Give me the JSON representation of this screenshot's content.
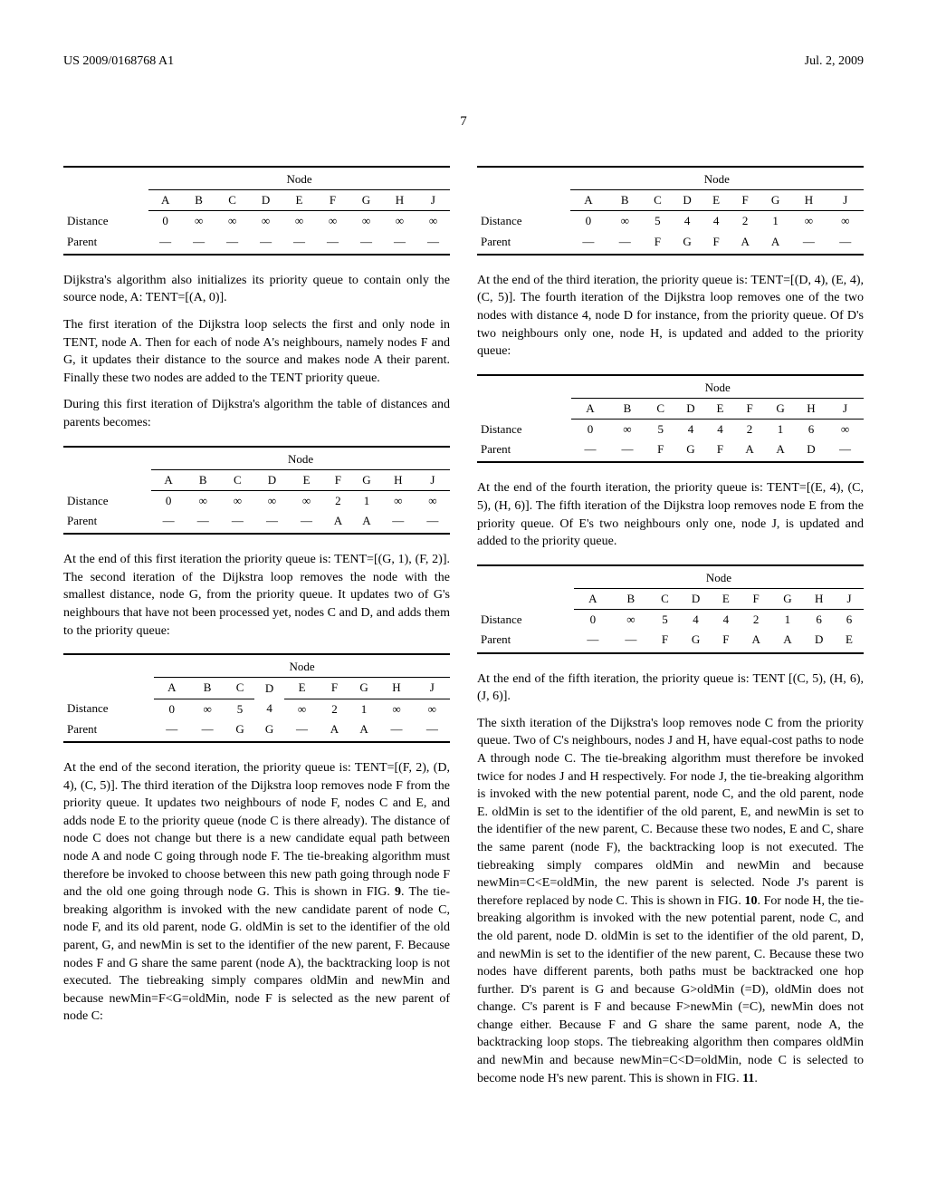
{
  "header": {
    "pub_number": "US 2009/0168768 A1",
    "date": "Jul. 2, 2009",
    "page_number": "7"
  },
  "cols": [
    "A",
    "B",
    "C",
    "D",
    "E",
    "F",
    "G",
    "H",
    "J"
  ],
  "row_labels": {
    "distance": "Distance",
    "parent": "Parent",
    "node": "Node"
  },
  "tables": {
    "t1": {
      "distance": [
        "0",
        "∞",
        "∞",
        "∞",
        "∞",
        "∞",
        "∞",
        "∞",
        "∞"
      ],
      "parent": [
        "—",
        "—",
        "—",
        "—",
        "—",
        "—",
        "—",
        "—",
        "—"
      ]
    },
    "t2": {
      "distance": [
        "0",
        "∞",
        "∞",
        "∞",
        "∞",
        "2",
        "1",
        "∞",
        "∞"
      ],
      "parent": [
        "—",
        "—",
        "—",
        "—",
        "—",
        "A",
        "A",
        "—",
        "—"
      ]
    },
    "t3": {
      "distance": [
        "0",
        "∞",
        "5",
        "4",
        "∞",
        "2",
        "1",
        "∞",
        "∞"
      ],
      "parent": [
        "—",
        "—",
        "G",
        "G",
        "—",
        "A",
        "A",
        "—",
        "—"
      ]
    },
    "t4": {
      "distance": [
        "0",
        "∞",
        "5",
        "4",
        "4",
        "2",
        "1",
        "∞",
        "∞"
      ],
      "parent": [
        "—",
        "—",
        "F",
        "G",
        "F",
        "A",
        "A",
        "—",
        "—"
      ]
    },
    "t5": {
      "distance": [
        "0",
        "∞",
        "5",
        "4",
        "4",
        "2",
        "1",
        "6",
        "∞"
      ],
      "parent": [
        "—",
        "—",
        "F",
        "G",
        "F",
        "A",
        "A",
        "D",
        "—"
      ]
    },
    "t6": {
      "distance": [
        "0",
        "∞",
        "5",
        "4",
        "4",
        "2",
        "1",
        "6",
        "6"
      ],
      "parent": [
        "—",
        "—",
        "F",
        "G",
        "F",
        "A",
        "A",
        "D",
        "E"
      ]
    }
  },
  "text": {
    "p1": "Dijkstra's algorithm also initializes its priority queue to contain only the source node, A: TENT=[(A, 0)].",
    "p2": "The first iteration of the Dijkstra loop selects the first and only node in TENT, node A. Then for each of node A's neighbours, namely nodes F and G, it updates their distance to the source and makes node A their parent. Finally these two nodes are added to the TENT priority queue.",
    "p3": "During this first iteration of Dijkstra's algorithm the table of distances and parents becomes:",
    "p4": "At the end of this first iteration the priority queue is: TENT=[(G, 1), (F, 2)]. The second iteration of the Dijkstra loop removes the node with the smallest distance, node G, from the priority queue. It updates two of G's neighbours that have not been processed yet, nodes C and D, and adds them to the priority queue:",
    "p5a": "At the end of the second iteration, the priority queue is: TENT=[(F, 2), (D, 4), (C, 5)]. The third iteration of the Dijkstra loop removes node F from the priority queue. It updates two neighbours of node F, nodes C and E, and adds node E to the priority queue (node C is there already). The distance of node C does not change but there is a new candidate equal path between node A and node C going through node F. The tie-breaking algorithm must therefore be invoked to choose between this new path going through node F and the old one going through node G. This is shown in FIG. ",
    "p5b": ". The tie-breaking algorithm is invoked with the new candidate parent of node C, node F, and its old parent, node G. oldMin is set to the identifier of the old parent, G, and newMin is set to the identifier of the new parent, F. Because nodes F and G share the same parent (node A), the backtracking loop is not executed. The tiebreaking simply compares oldMin and newMin and because newMin=F<G=oldMin, node F is selected as the new parent of node C:",
    "p5fig": "9",
    "p6": "At the end of the third iteration, the priority queue is: TENT=[(D, 4), (E, 4), (C, 5)]. The fourth iteration of the Dijkstra loop removes one of the two nodes with distance 4, node D for instance, from the priority queue. Of D's two neighbours only one, node H, is updated and added to the priority queue:",
    "p7": "At the end of the fourth iteration, the priority queue is: TENT=[(E, 4), (C, 5), (H, 6)]. The fifth iteration of the Dijkstra loop removes node E from the priority queue. Of E's two neighbours only one, node J, is updated and added to the priority queue.",
    "p8": "At the end of the fifth iteration, the priority queue is: TENT [(C, 5), (H, 6), (J, 6)].",
    "p9a": "The sixth iteration of the Dijkstra's loop removes node C from the priority queue. Two of C's neighbours, nodes J and H, have equal-cost paths to node A through node C. The tie-breaking algorithm must therefore be invoked twice for nodes J and H respectively. For node J, the tie-breaking algorithm is invoked with the new potential parent, node C, and the old parent, node E. oldMin is set to the identifier of the old parent, E, and newMin is set to the identifier of the new parent, C. Because these two nodes, E and C, share the same parent (node F), the backtracking loop is not executed. The tiebreaking simply compares oldMin and newMin and because newMin=C<E=oldMin, the new parent is selected. Node J's parent is therefore replaced by node C. This is shown in FIG. ",
    "p9fig1": "10",
    "p9b": ". For node H, the tie-breaking algorithm is invoked with the new potential parent, node C, and the old parent, node D. oldMin is set to the identifier of the old parent, D, and newMin is set to the identifier of the new parent, C. Because these two nodes have different parents, both paths must be backtracked one hop further. D's parent is G and because G>oldMin (=D), oldMin does not change. C's parent is F and because F>newMin (=C), newMin does not change either. Because F and G share the same parent, node A, the backtracking loop stops. The tiebreaking algorithm then compares oldMin and newMin and because newMin=C<D=oldMin, node C is selected to become node H's new parent. This is shown in FIG. ",
    "p9fig2": "11",
    "p9c": "."
  }
}
